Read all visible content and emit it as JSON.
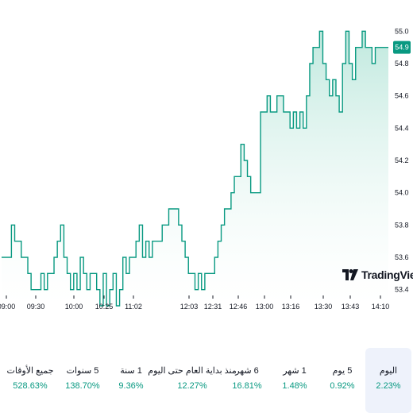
{
  "colors": {
    "line": "#089981",
    "area_top": "#b8e6da",
    "area_bottom": "#ffffff",
    "positive": "#089981",
    "active_bg": "#eef2fb"
  },
  "logo": {
    "text": "TradingView",
    "icon": "tradingview-logo-icon"
  },
  "chart_data": {
    "type": "area",
    "ylim": [
      53.3,
      55.1
    ],
    "y_ticks": [
      "55.0",
      "54.8",
      "54.6",
      "54.4",
      "54.2",
      "54.0",
      "53.8",
      "53.6",
      "53.4"
    ],
    "x_ticks": [
      "09:00",
      "09:30",
      "10:00",
      "10:25",
      "11:02",
      "12:03",
      "12:31",
      "12:46",
      "13:00",
      "13:16",
      "13:30",
      "13:43",
      "14:10"
    ],
    "last_value_label": "54.9",
    "grid": false,
    "values": [
      53.6,
      53.6,
      53.6,
      53.8,
      53.7,
      53.7,
      53.6,
      53.6,
      53.5,
      53.4,
      53.4,
      53.4,
      53.5,
      53.4,
      53.5,
      53.5,
      53.6,
      53.7,
      53.8,
      53.6,
      53.5,
      53.4,
      53.5,
      53.4,
      53.6,
      53.5,
      53.4,
      53.5,
      53.5,
      53.4,
      53.3,
      53.5,
      53.3,
      53.4,
      53.5,
      53.3,
      53.4,
      53.6,
      53.5,
      53.6,
      53.6,
      53.7,
      53.8,
      53.6,
      53.7,
      53.6,
      53.7,
      53.7,
      53.7,
      53.8,
      53.8,
      53.9,
      53.9,
      53.9,
      53.8,
      53.7,
      53.6,
      53.5,
      53.5,
      53.4,
      53.5,
      53.4,
      53.5,
      53.5,
      53.5,
      53.6,
      53.7,
      53.8,
      53.9,
      53.9,
      54.0,
      54.1,
      54.1,
      54.3,
      54.2,
      54.1,
      54.0,
      54.0,
      54.0,
      54.5,
      54.5,
      54.6,
      54.5,
      54.5,
      54.6,
      54.6,
      54.5,
      54.5,
      54.4,
      54.5,
      54.4,
      54.5,
      54.4,
      54.6,
      54.8,
      54.9,
      54.9,
      55.0,
      54.8,
      54.7,
      54.6,
      54.7,
      54.6,
      54.5,
      54.8,
      55.0,
      54.8,
      54.7,
      54.9,
      54.9,
      55.0,
      54.9,
      54.9,
      54.8,
      54.9,
      54.9,
      54.9,
      54.9,
      54.9
    ]
  },
  "periods": [
    {
      "label": "اليوم",
      "value": "2.23%",
      "active": true
    },
    {
      "label": "5 يوم",
      "value": "0.92%",
      "active": false
    },
    {
      "label": "1 شهر",
      "value": "1.48%",
      "active": false
    },
    {
      "label": "6 شهر",
      "value": "16.81%",
      "active": false
    },
    {
      "label": "منذ بداية العام حتى اليوم",
      "value": "12.27%",
      "active": false
    },
    {
      "label": "1 سنة",
      "value": "9.36%",
      "active": false
    },
    {
      "label": "5 سنوات",
      "value": "138.70%",
      "active": false
    },
    {
      "label": "جميع الأوقات",
      "value": "528.63%",
      "active": false
    }
  ]
}
